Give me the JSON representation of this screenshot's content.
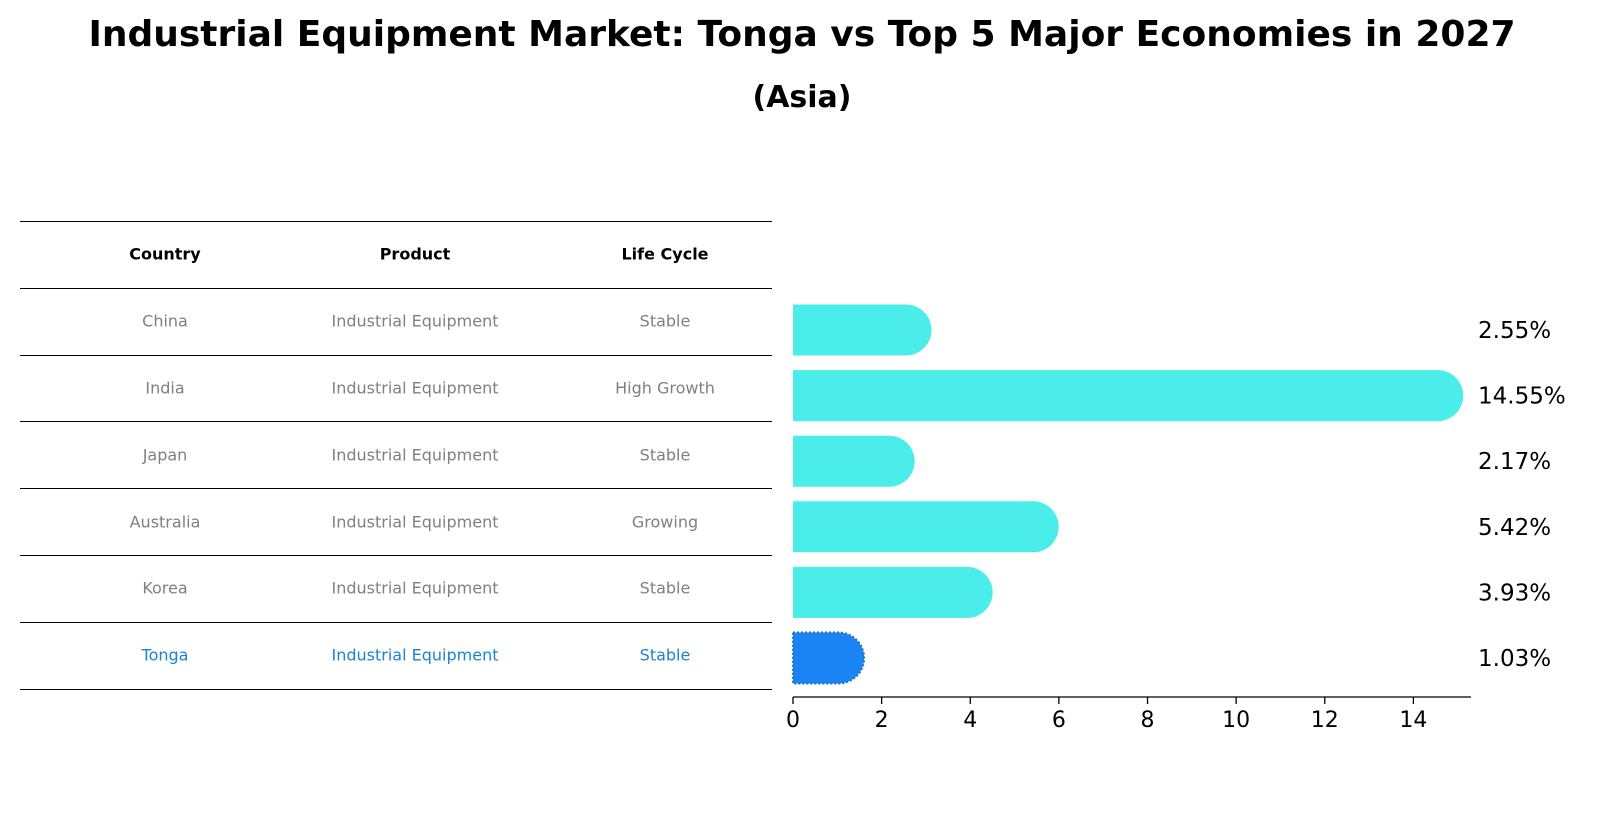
{
  "title": "Industrial Equipment Market: Tonga vs Top 5 Major Economies in 2027",
  "subtitle": "(Asia)",
  "table": {
    "headers": [
      "Country",
      "Product",
      "Life Cycle"
    ],
    "rows": [
      {
        "country": "China",
        "product": "Industrial Equipment",
        "life_cycle": "Stable",
        "highlight": false
      },
      {
        "country": "India",
        "product": "Industrial Equipment",
        "life_cycle": "High Growth",
        "highlight": false
      },
      {
        "country": "Japan",
        "product": "Industrial Equipment",
        "life_cycle": "Stable",
        "highlight": false
      },
      {
        "country": "Australia",
        "product": "Industrial Equipment",
        "life_cycle": "Growing",
        "highlight": false
      },
      {
        "country": "Korea",
        "product": "Industrial Equipment",
        "life_cycle": "Stable",
        "highlight": false
      },
      {
        "country": "Tonga",
        "product": "Industrial Equipment",
        "life_cycle": "Stable",
        "highlight": true
      }
    ]
  },
  "colors": {
    "bar": "#4aede9",
    "highlight_bar": "#1a84f4",
    "highlight_text": "#1a84d3",
    "muted_text": "#808080"
  },
  "chart_data": {
    "type": "bar",
    "orientation": "horizontal",
    "title": "Industrial Equipment Market: Tonga vs Top 5 Major Economies in 2027",
    "subtitle": "(Asia)",
    "categories": [
      "China",
      "India",
      "Japan",
      "Australia",
      "Korea",
      "Tonga"
    ],
    "values": [
      2.55,
      14.55,
      2.17,
      5.42,
      3.93,
      1.03
    ],
    "value_labels": [
      "2.55%",
      "14.55%",
      "2.17%",
      "5.42%",
      "3.93%",
      "1.03%"
    ],
    "highlight": "Tonga",
    "xlim": [
      0,
      15.3
    ],
    "xticks": [
      0,
      2,
      4,
      6,
      8,
      10,
      12,
      14
    ],
    "xlabel": "",
    "ylabel": "",
    "grid": false
  }
}
